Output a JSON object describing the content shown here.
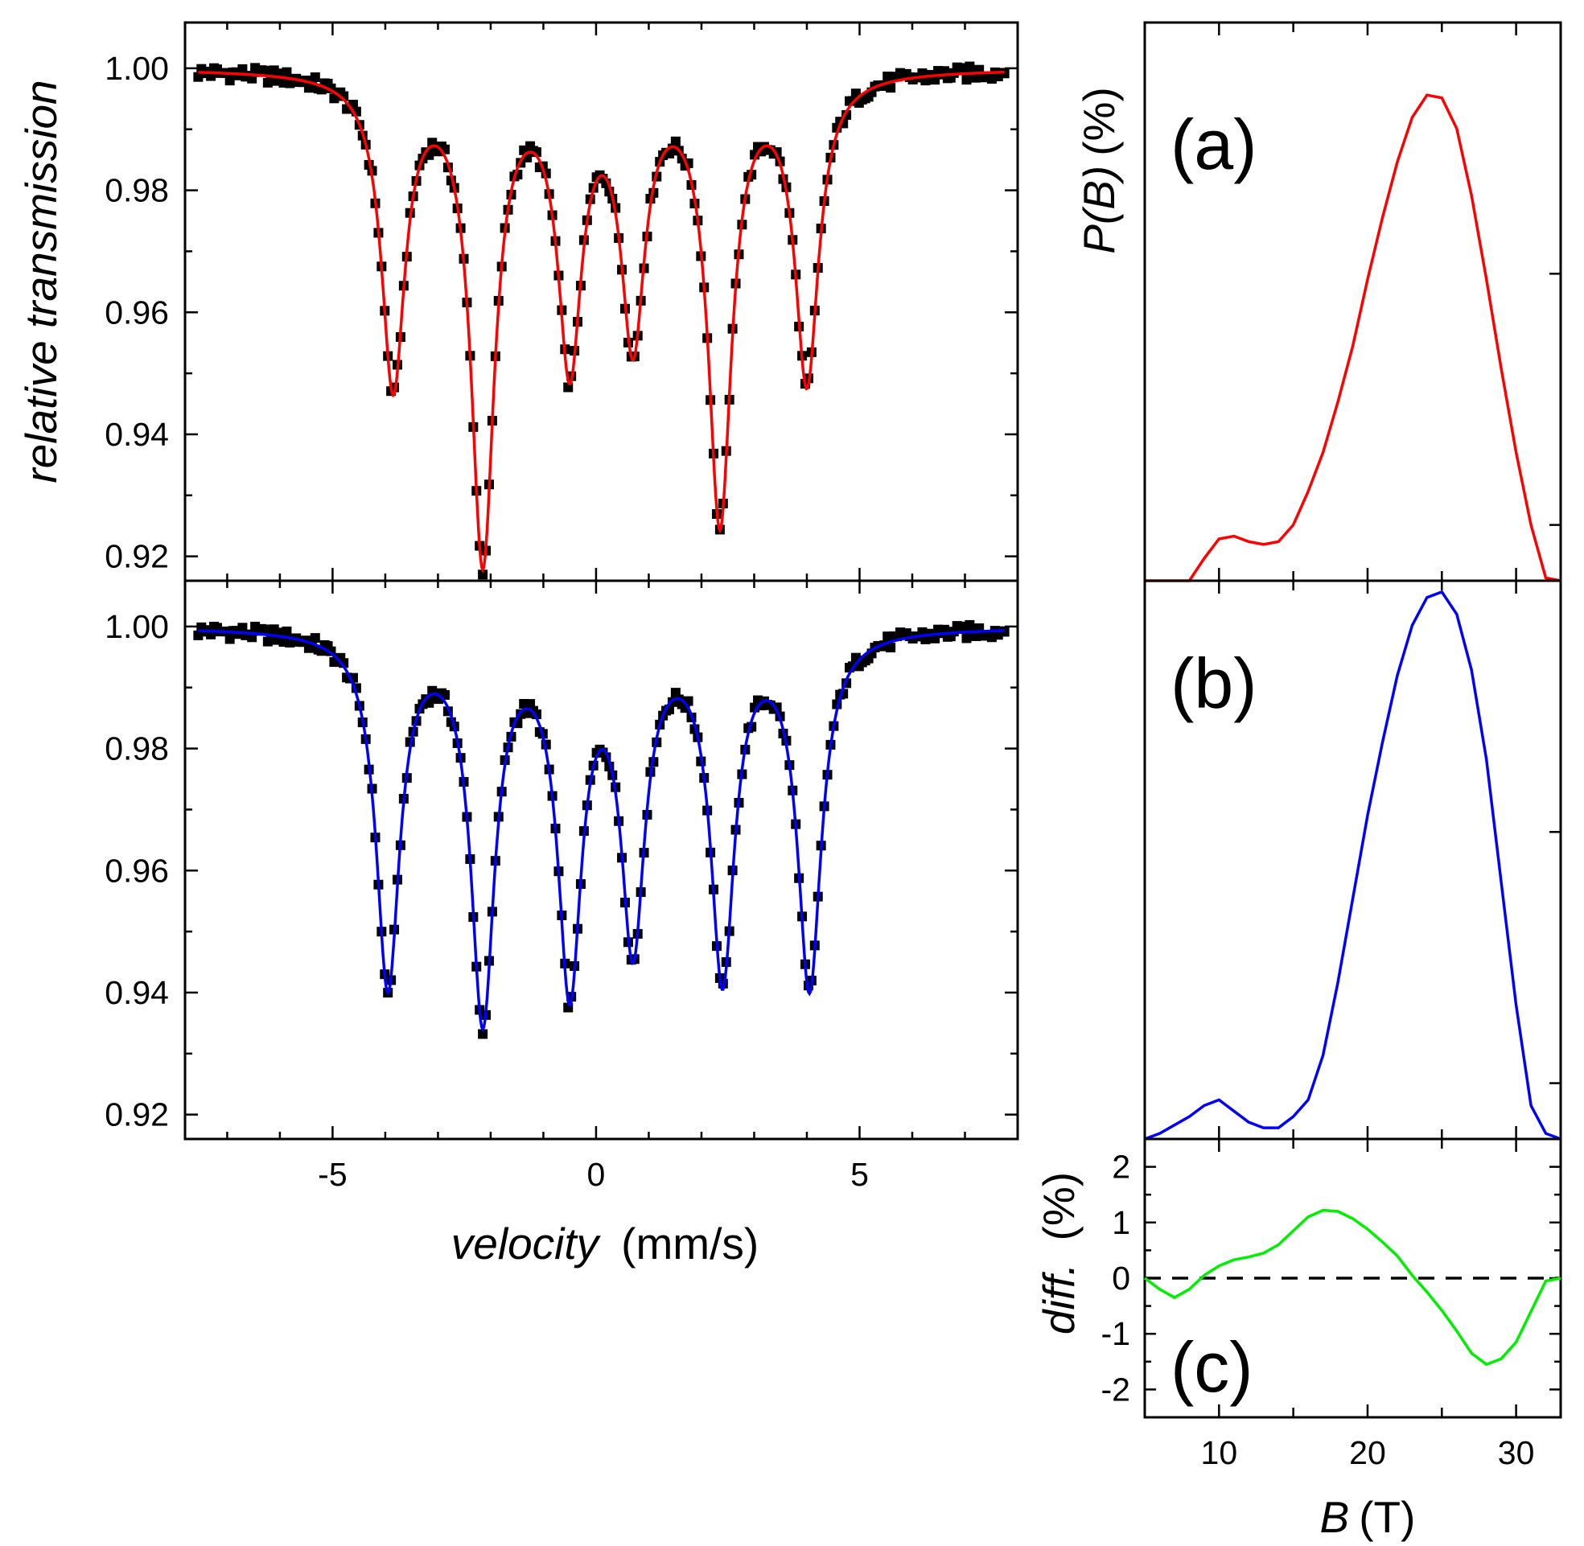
{
  "chart_data": [
    {
      "type": "scatter",
      "name": "spectrum-top",
      "color": "#ff0000",
      "xlabel_italic": "velocity",
      "xlabel_unit": "(mm/s)",
      "ylabel": "relative transmission",
      "xlim": [
        -7.8,
        8.0
      ],
      "ylim": [
        0.916,
        1.0075
      ],
      "yticks": [
        "0.92",
        "0.94",
        "0.96",
        "0.98",
        "1.00"
      ],
      "ytick_values": [
        0.92,
        0.94,
        0.96,
        0.98,
        1.0
      ],
      "xticks": [
        "-5",
        "0",
        "5"
      ],
      "xtick_values": [
        -5,
        0,
        5
      ],
      "baseline": 1.0,
      "line_width_mm_s": 0.27,
      "peaks": [
        {
          "center": -3.85,
          "depth": 0.051
        },
        {
          "center": -2.15,
          "depth": 0.079
        },
        {
          "center": -0.5,
          "depth": 0.0465
        },
        {
          "center": 0.7,
          "depth": 0.0425
        },
        {
          "center": 2.35,
          "depth": 0.0725
        },
        {
          "center": 4.0,
          "depth": 0.05
        }
      ]
    },
    {
      "type": "scatter",
      "name": "spectrum-bottom",
      "color": "#0000ff",
      "xlim": [
        -7.8,
        8.0
      ],
      "ylim": [
        0.916,
        1.0075
      ],
      "yticks": [
        "0.92",
        "0.94",
        "0.96",
        "0.98",
        "1.00"
      ],
      "ytick_values": [
        0.92,
        0.94,
        0.96,
        0.98,
        1.0
      ],
      "xticks": [
        "-5",
        "0",
        "5"
      ],
      "xtick_values": [
        -5,
        0,
        5
      ],
      "baseline": 1.0,
      "line_width_mm_s": 0.27,
      "peaks": [
        {
          "center": -3.95,
          "depth": 0.058
        },
        {
          "center": -2.15,
          "depth": 0.0625
        },
        {
          "center": -0.5,
          "depth": 0.057
        },
        {
          "center": 0.7,
          "depth": 0.05
        },
        {
          "center": 2.4,
          "depth": 0.056
        },
        {
          "center": 4.05,
          "depth": 0.058
        }
      ]
    },
    {
      "type": "line",
      "name": "distribution-a",
      "label": "(a)",
      "color": "#ff0000",
      "ylabel_italic": "P(B)",
      "ylabel_unit": "(%)",
      "xlim": [
        5,
        33
      ],
      "ylim": [
        0,
        1.0
      ],
      "x": [
        5,
        6,
        7,
        8,
        9,
        10,
        11,
        12,
        13,
        14,
        15,
        16,
        17,
        18,
        19,
        20,
        21,
        22,
        23,
        24,
        25,
        26,
        27,
        28,
        29,
        30,
        31,
        32,
        33
      ],
      "y": [
        0,
        0,
        0,
        0,
        0.04,
        0.075,
        0.08,
        0.07,
        0.065,
        0.07,
        0.1,
        0.16,
        0.23,
        0.32,
        0.42,
        0.54,
        0.65,
        0.75,
        0.83,
        0.87,
        0.865,
        0.81,
        0.69,
        0.54,
        0.38,
        0.23,
        0.1,
        0.005,
        0
      ]
    },
    {
      "type": "line",
      "name": "distribution-b",
      "label": "(b)",
      "color": "#0000ff",
      "xlim": [
        5,
        33
      ],
      "ylim": [
        0,
        1.0
      ],
      "x": [
        5,
        6,
        7,
        8,
        9,
        10,
        11,
        12,
        13,
        14,
        15,
        16,
        17,
        18,
        19,
        20,
        21,
        22,
        23,
        24,
        25,
        26,
        27,
        28,
        29,
        30,
        31,
        32,
        33
      ],
      "y": [
        0,
        0.01,
        0.025,
        0.04,
        0.06,
        0.07,
        0.05,
        0.03,
        0.02,
        0.02,
        0.04,
        0.07,
        0.15,
        0.28,
        0.43,
        0.58,
        0.71,
        0.83,
        0.92,
        0.97,
        0.98,
        0.94,
        0.84,
        0.68,
        0.46,
        0.24,
        0.06,
        0.01,
        0
      ]
    },
    {
      "type": "line",
      "name": "difference-c",
      "label": "(c)",
      "color": "#00ee00",
      "ylabel_italic": "diff.",
      "ylabel_unit": "(%)",
      "xlabel_italic": "B",
      "xlabel_unit": "(T)",
      "xlim": [
        5,
        33
      ],
      "ylim": [
        -2.5,
        2.5
      ],
      "yticks": [
        "-2",
        "-1",
        "0",
        "1",
        "2"
      ],
      "ytick_values": [
        -2,
        -1,
        0,
        1,
        2
      ],
      "xticks": [
        "10",
        "20",
        "30"
      ],
      "xtick_values": [
        10,
        20,
        30
      ],
      "zero_line": 0,
      "x": [
        5,
        6,
        7,
        8,
        9,
        10,
        11,
        12,
        13,
        14,
        15,
        16,
        17,
        18,
        19,
        20,
        21,
        22,
        23,
        24,
        25,
        26,
        27,
        28,
        29,
        30,
        31,
        32,
        33
      ],
      "y": [
        0,
        -0.2,
        -0.35,
        -0.2,
        0.05,
        0.22,
        0.33,
        0.38,
        0.45,
        0.6,
        0.85,
        1.1,
        1.22,
        1.2,
        1.07,
        0.88,
        0.65,
        0.4,
        0.05,
        -0.25,
        -0.58,
        -0.95,
        -1.35,
        -1.55,
        -1.45,
        -1.15,
        -0.6,
        -0.05,
        0
      ]
    }
  ]
}
